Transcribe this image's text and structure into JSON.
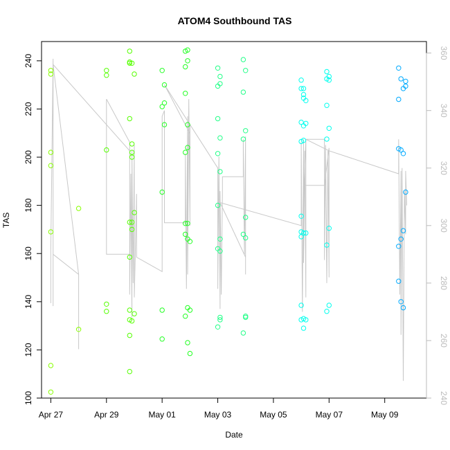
{
  "chart_data": {
    "type": "scatter",
    "title": "ATOM4 Southbound TAS",
    "xlabel": "Date",
    "ylabel": "TAS",
    "xlim": [
      "2016-04-26T16:00",
      "2016-05-10T12:00"
    ],
    "ylim": [
      100,
      248
    ],
    "y2lim": [
      240,
      364
    ],
    "x_ticks": [
      {
        "date": "2016-04-27",
        "label": "Apr 27"
      },
      {
        "date": "2016-04-29",
        "label": "Apr 29"
      },
      {
        "date": "2016-05-01",
        "label": "May 01"
      },
      {
        "date": "2016-05-03",
        "label": "May 03"
      },
      {
        "date": "2016-05-05",
        "label": "May 05"
      },
      {
        "date": "2016-05-07",
        "label": "May 07"
      },
      {
        "date": "2016-05-09",
        "label": "May 09"
      }
    ],
    "y_ticks": [
      100,
      120,
      140,
      160,
      180,
      200,
      220,
      240
    ],
    "y2_ticks": [
      240,
      260,
      280,
      300,
      320,
      340,
      360
    ],
    "grid": false,
    "point_groups": [
      {
        "color": "#88ff00",
        "points": [
          [
            "2016-04-27T00:00",
            236.0
          ],
          [
            "2016-04-27T00:00",
            234.5
          ],
          [
            "2016-04-27T00:00",
            202.0
          ],
          [
            "2016-04-27T00:00",
            196.5
          ],
          [
            "2016-04-27T00:00",
            169.0
          ],
          [
            "2016-04-27T00:00",
            113.5
          ],
          [
            "2016-04-27T00:00",
            102.5
          ],
          [
            "2016-04-28T00:00",
            178.7
          ],
          [
            "2016-04-28T00:00",
            128.5
          ]
        ]
      },
      {
        "color": "#55ff00",
        "points": [
          [
            "2016-04-29T00:00",
            236.0
          ],
          [
            "2016-04-29T00:00",
            234.0
          ],
          [
            "2016-04-29T00:00",
            203.0
          ],
          [
            "2016-04-29T00:00",
            139.0
          ],
          [
            "2016-04-29T00:00",
            136.0
          ],
          [
            "2016-04-29T20:00",
            244.0
          ],
          [
            "2016-04-29T20:00",
            239.5
          ],
          [
            "2016-04-29T20:00",
            239.0
          ],
          [
            "2016-04-29T20:00",
            216.0
          ],
          [
            "2016-04-29T20:00",
            173.0
          ],
          [
            "2016-04-29T20:00",
            158.5
          ],
          [
            "2016-04-29T20:00",
            136.5
          ],
          [
            "2016-04-29T20:00",
            132.5
          ],
          [
            "2016-04-29T20:00",
            126.0
          ],
          [
            "2016-04-29T20:00",
            111.0
          ],
          [
            "2016-04-29T22:00",
            239.0
          ],
          [
            "2016-04-29T22:00",
            205.5
          ],
          [
            "2016-04-29T22:00",
            202.0
          ],
          [
            "2016-04-29T22:00",
            200.0
          ],
          [
            "2016-04-29T22:00",
            173.0
          ],
          [
            "2016-04-29T22:00",
            170.0
          ],
          [
            "2016-04-29T22:00",
            132.0
          ],
          [
            "2016-04-30T00:00",
            234.5
          ],
          [
            "2016-04-30T00:00",
            177.0
          ],
          [
            "2016-04-30T00:00",
            135.0
          ]
        ]
      },
      {
        "color": "#22ff22",
        "points": [
          [
            "2016-05-01T00:00",
            236.0
          ],
          [
            "2016-05-01T00:00",
            221.0
          ],
          [
            "2016-05-01T00:00",
            185.5
          ],
          [
            "2016-05-01T00:00",
            136.5
          ],
          [
            "2016-05-01T00:00",
            124.5
          ],
          [
            "2016-05-01T02:00",
            230.0
          ],
          [
            "2016-05-01T02:00",
            222.5
          ],
          [
            "2016-05-01T02:00",
            213.5
          ],
          [
            "2016-05-01T20:00",
            244.0
          ],
          [
            "2016-05-01T20:00",
            237.5
          ],
          [
            "2016-05-01T20:00",
            226.5
          ],
          [
            "2016-05-01T20:00",
            202.0
          ],
          [
            "2016-05-01T20:00",
            172.5
          ],
          [
            "2016-05-01T20:00",
            168.0
          ],
          [
            "2016-05-01T20:00",
            134.0
          ],
          [
            "2016-05-01T22:00",
            244.5
          ],
          [
            "2016-05-01T22:00",
            240.0
          ],
          [
            "2016-05-01T22:00",
            213.5
          ],
          [
            "2016-05-01T22:00",
            204.0
          ],
          [
            "2016-05-01T22:00",
            172.5
          ],
          [
            "2016-05-01T22:00",
            166.0
          ],
          [
            "2016-05-01T22:00",
            137.5
          ],
          [
            "2016-05-01T22:00",
            123.0
          ],
          [
            "2016-05-02T00:00",
            165.0
          ],
          [
            "2016-05-02T00:00",
            136.5
          ],
          [
            "2016-05-02T00:00",
            118.5
          ]
        ]
      },
      {
        "color": "#22ff88",
        "points": [
          [
            "2016-05-03T00:00",
            237.0
          ],
          [
            "2016-05-03T00:00",
            229.5
          ],
          [
            "2016-05-03T00:00",
            216.0
          ],
          [
            "2016-05-03T00:00",
            201.5
          ],
          [
            "2016-05-03T00:00",
            180.0
          ],
          [
            "2016-05-03T00:00",
            162.0
          ],
          [
            "2016-05-03T00:00",
            129.5
          ],
          [
            "2016-05-03T02:00",
            233.5
          ],
          [
            "2016-05-03T02:00",
            230.5
          ],
          [
            "2016-05-03T02:00",
            208.0
          ],
          [
            "2016-05-03T02:00",
            194.0
          ],
          [
            "2016-05-03T02:00",
            166.0
          ],
          [
            "2016-05-03T02:00",
            161.0
          ],
          [
            "2016-05-03T02:00",
            133.5
          ],
          [
            "2016-05-03T02:00",
            132.5
          ],
          [
            "2016-05-03T22:00",
            240.5
          ],
          [
            "2016-05-03T22:00",
            227.0
          ],
          [
            "2016-05-03T22:00",
            207.5
          ],
          [
            "2016-05-03T22:00",
            168.0
          ],
          [
            "2016-05-03T22:00",
            127.0
          ],
          [
            "2016-05-04T00:00",
            236.0
          ],
          [
            "2016-05-04T00:00",
            211.0
          ],
          [
            "2016-05-04T00:00",
            175.0
          ],
          [
            "2016-05-04T00:00",
            166.5
          ],
          [
            "2016-05-04T00:00",
            134.0
          ],
          [
            "2016-05-04T00:00",
            133.5
          ]
        ]
      },
      {
        "color": "#00ffee",
        "points": [
          [
            "2016-05-06T00:00",
            232.0
          ],
          [
            "2016-05-06T00:00",
            228.5
          ],
          [
            "2016-05-06T00:00",
            214.5
          ],
          [
            "2016-05-06T00:00",
            206.5
          ],
          [
            "2016-05-06T00:00",
            175.5
          ],
          [
            "2016-05-06T00:00",
            169.0
          ],
          [
            "2016-05-06T00:00",
            167.0
          ],
          [
            "2016-05-06T00:00",
            138.5
          ],
          [
            "2016-05-06T00:00",
            132.5
          ],
          [
            "2016-05-06T02:00",
            228.5
          ],
          [
            "2016-05-06T02:00",
            226.0
          ],
          [
            "2016-05-06T02:00",
            224.5
          ],
          [
            "2016-05-06T02:00",
            213.0
          ],
          [
            "2016-05-06T02:00",
            207.0
          ],
          [
            "2016-05-06T02:00",
            168.5
          ],
          [
            "2016-05-06T02:00",
            133.0
          ],
          [
            "2016-05-06T02:00",
            129.0
          ],
          [
            "2016-05-06T04:00",
            223.5
          ],
          [
            "2016-05-06T04:00",
            214.0
          ],
          [
            "2016-05-06T04:00",
            168.5
          ],
          [
            "2016-05-06T04:00",
            132.5
          ],
          [
            "2016-05-06T22:00",
            235.5
          ],
          [
            "2016-05-06T22:00",
            232.5
          ],
          [
            "2016-05-06T22:00",
            221.5
          ],
          [
            "2016-05-06T22:00",
            207.5
          ],
          [
            "2016-05-06T22:00",
            163.5
          ],
          [
            "2016-05-06T22:00",
            136.0
          ],
          [
            "2016-05-07T00:00",
            233.5
          ],
          [
            "2016-05-07T00:00",
            232.0
          ],
          [
            "2016-05-07T00:00",
            212.0
          ],
          [
            "2016-05-07T00:00",
            170.5
          ],
          [
            "2016-05-07T00:00",
            138.5
          ]
        ]
      },
      {
        "color": "#00aaff",
        "points": [
          [
            "2016-05-09T12:00",
            237.0
          ],
          [
            "2016-05-09T12:00",
            224.0
          ],
          [
            "2016-05-09T12:00",
            203.5
          ],
          [
            "2016-05-09T12:00",
            163.0
          ],
          [
            "2016-05-09T12:00",
            148.5
          ],
          [
            "2016-05-09T14:00",
            232.5
          ],
          [
            "2016-05-09T14:00",
            203.0
          ],
          [
            "2016-05-09T14:00",
            166.0
          ],
          [
            "2016-05-09T14:00",
            140.0
          ],
          [
            "2016-05-09T16:00",
            228.5
          ],
          [
            "2016-05-09T16:00",
            201.5
          ],
          [
            "2016-05-09T16:00",
            169.5
          ],
          [
            "2016-05-09T16:00",
            137.5
          ],
          [
            "2016-05-09T18:00",
            231.5
          ],
          [
            "2016-05-09T18:00",
            229.5
          ],
          [
            "2016-05-09T18:00",
            185.5
          ]
        ]
      }
    ],
    "line_series": {
      "axis": "y2",
      "color": "#c8c8c8",
      "points": [
        [
          "2016-04-27T00:00",
          280
        ],
        [
          "2016-04-27T00:00",
          286
        ],
        [
          "2016-04-27T00:00",
          273
        ],
        [
          "2016-04-27T00:00",
          292
        ],
        [
          "2016-04-27T02:00",
          358
        ],
        [
          "2016-04-27T02:00",
          272
        ],
        [
          "2016-04-27T02:00",
          290
        ],
        [
          "2016-04-28T00:00",
          283
        ],
        [
          "2016-04-28T00:00",
          257
        ],
        [
          "2016-04-28T00:00",
          283
        ],
        [
          "2016-04-27T02:00",
          356
        ],
        [
          "2016-04-29T20:00",
          326
        ],
        [
          "2016-04-29T20:00",
          290
        ],
        [
          "2016-04-29T00:00",
          290
        ],
        [
          "2016-04-29T00:00",
          344
        ],
        [
          "2016-04-29T20:00",
          329
        ],
        [
          "2016-04-29T20:00",
          276
        ],
        [
          "2016-04-29T21:00",
          318
        ],
        [
          "2016-04-29T22:00",
          268
        ],
        [
          "2016-04-29T22:00",
          326
        ],
        [
          "2016-04-29T23:00",
          280
        ],
        [
          "2016-04-30T00:00",
          328
        ],
        [
          "2016-04-30T00:00",
          275
        ],
        [
          "2016-04-30T02:00",
          311
        ],
        [
          "2016-04-30T02:00",
          289
        ],
        [
          "2016-05-01T00:00",
          284
        ],
        [
          "2016-05-01T00:00",
          338
        ],
        [
          "2016-05-01T02:00",
          340
        ],
        [
          "2016-05-01T02:00",
          301
        ],
        [
          "2016-05-01T20:00",
          301
        ],
        [
          "2016-05-01T20:00",
          325
        ],
        [
          "2016-05-01T21:00",
          278
        ],
        [
          "2016-05-01T22:00",
          338
        ],
        [
          "2016-05-01T22:00",
          283
        ],
        [
          "2016-05-01T23:00",
          344
        ],
        [
          "2016-05-02T00:00",
          300
        ],
        [
          "2016-05-02T00:00",
          335
        ],
        [
          "2016-05-02T00:00",
          332
        ],
        [
          "2016-05-01T02:00",
          349
        ],
        [
          "2016-05-03T00:00",
          320
        ],
        [
          "2016-05-03T00:00",
          278
        ],
        [
          "2016-05-03T01:00",
          324
        ],
        [
          "2016-05-03T02:00",
          271
        ],
        [
          "2016-05-03T02:00",
          312
        ],
        [
          "2016-05-03T03:00",
          276
        ],
        [
          "2016-05-03T04:00",
          311
        ],
        [
          "2016-05-03T04:00",
          317
        ],
        [
          "2016-05-03T22:00",
          317
        ],
        [
          "2016-05-03T22:00",
          330
        ],
        [
          "2016-05-03T23:00",
          290
        ],
        [
          "2016-05-04T00:00",
          331
        ],
        [
          "2016-05-04T00:00",
          283
        ],
        [
          "2016-05-04T00:00",
          289
        ],
        [
          "2016-05-03T02:00",
          308
        ],
        [
          "2016-05-06T00:00",
          300
        ],
        [
          "2016-05-06T00:00",
          329
        ],
        [
          "2016-05-06T01:00",
          270
        ],
        [
          "2016-05-06T02:00",
          330
        ],
        [
          "2016-05-06T02:00",
          287
        ],
        [
          "2016-05-06T03:00",
          326
        ],
        [
          "2016-05-06T04:00",
          275
        ],
        [
          "2016-05-06T04:00",
          302
        ],
        [
          "2016-05-06T04:00",
          317
        ],
        [
          "2016-05-06T04:00",
          330
        ],
        [
          "2016-05-06T20:00",
          330
        ],
        [
          "2016-05-06T20:00",
          288
        ],
        [
          "2016-05-06T21:00",
          328
        ],
        [
          "2016-05-06T22:00",
          280
        ],
        [
          "2016-05-06T23:00",
          326
        ],
        [
          "2016-05-07T00:00",
          282
        ],
        [
          "2016-05-07T00:00",
          327
        ],
        [
          "2016-05-06T20:00",
          314
        ],
        [
          "2016-05-06T02:00",
          314
        ],
        [
          "2016-05-06T02:00",
          310
        ],
        [
          "2016-05-06T04:00",
          330
        ],
        [
          "2016-05-07T00:00",
          326
        ],
        [
          "2016-05-09T12:00",
          318
        ],
        [
          "2016-05-09T12:00",
          330
        ],
        [
          "2016-05-09T13:00",
          276
        ],
        [
          "2016-05-09T14:00",
          319
        ],
        [
          "2016-05-09T14:00",
          262
        ],
        [
          "2016-05-09T15:00",
          320
        ],
        [
          "2016-05-09T16:00",
          246
        ],
        [
          "2016-05-09T17:00",
          312
        ],
        [
          "2016-05-09T18:00",
          297
        ],
        [
          "2016-05-09T18:00",
          319
        ],
        [
          "2016-05-09T19:00",
          307
        ]
      ]
    }
  }
}
